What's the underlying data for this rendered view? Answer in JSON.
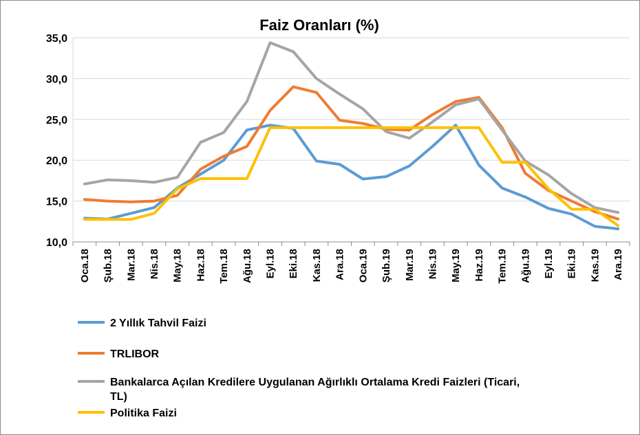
{
  "chart_data": {
    "type": "line",
    "title": "Faiz Oranları (%)",
    "xlabel": "",
    "ylabel": "",
    "ylim": [
      10,
      35
    ],
    "yticks": [
      "10,0",
      "15,0",
      "20,0",
      "25,0",
      "30,0",
      "35,0"
    ],
    "ytick_values": [
      10,
      15,
      20,
      25,
      30,
      35
    ],
    "grid": true,
    "legend_position": "bottom",
    "categories": [
      "Oca.18",
      "Şub.18",
      "Mar.18",
      "Nis.18",
      "May.18",
      "Haz.18",
      "Tem.18",
      "Ağu.18",
      "Eyl.18",
      "Eki.18",
      "Kas.18",
      "Ara.18",
      "Oca.19",
      "Şub.19",
      "Mar.19",
      "Nis.19",
      "May.19",
      "Haz.19",
      "Tem.19",
      "Ağu.19",
      "Eyl.19",
      "Eki.19",
      "Kas.19",
      "Ara.19"
    ],
    "series": [
      {
        "name": "2 Yıllık Tahvil Faizi",
        "color": "#5b9bd5",
        "values": [
          12.9,
          12.8,
          13.5,
          14.2,
          16.6,
          18.3,
          20.0,
          23.7,
          24.3,
          23.9,
          19.9,
          19.5,
          17.7,
          18.0,
          19.3,
          21.7,
          24.3,
          19.4,
          16.6,
          15.5,
          14.1,
          13.4,
          11.9,
          11.6
        ]
      },
      {
        "name": "TRLIBOR",
        "color": "#ed7d31",
        "values": [
          15.2,
          15.0,
          14.9,
          15.0,
          15.7,
          18.9,
          20.5,
          21.7,
          26.1,
          29.0,
          28.3,
          24.9,
          24.5,
          23.8,
          23.7,
          25.6,
          27.2,
          27.7,
          24.0,
          18.4,
          16.3,
          15.0,
          13.7,
          12.8
        ]
      },
      {
        "name": "Bankalarca Açılan Kredilere Uygulanan Ağırlıklı Ortalama Kredi Faizleri (Ticari, TL)",
        "legend_lines": [
          "Bankalarca Açılan Kredilere Uygulanan Ağırlıklı Ortalama Kredi Faizleri (Ticari,",
          "TL)"
        ],
        "color": "#a5a5a5",
        "values": [
          17.1,
          17.6,
          17.5,
          17.3,
          17.9,
          22.2,
          23.4,
          27.2,
          34.4,
          33.3,
          30.0,
          28.1,
          26.3,
          23.5,
          22.7,
          24.7,
          26.8,
          27.5,
          23.7,
          19.9,
          18.2,
          15.9,
          14.2,
          13.6
        ]
      },
      {
        "name": "Politika Faizi",
        "color": "#ffc000",
        "values": [
          12.75,
          12.75,
          12.75,
          13.5,
          16.5,
          17.75,
          17.75,
          17.75,
          24.0,
          24.0,
          24.0,
          24.0,
          24.0,
          24.0,
          24.0,
          24.0,
          24.0,
          24.0,
          19.75,
          19.75,
          16.5,
          14.0,
          14.0,
          12.0
        ]
      }
    ]
  }
}
